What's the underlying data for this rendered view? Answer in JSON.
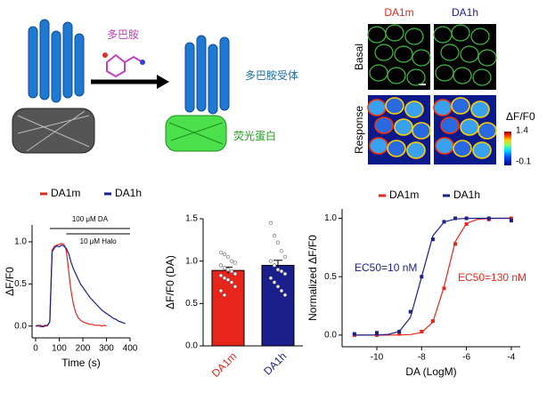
{
  "illustration": {
    "ligand": "多巴胺",
    "receptor": "多巴胺受体",
    "reporter": "荧光蛋白"
  },
  "imaging": {
    "columns": [
      "DA1m",
      "DA1h"
    ],
    "column_colors": [
      "#e8251b",
      "#1a1f8c"
    ],
    "rows": [
      "Basal",
      "Response"
    ],
    "colorbar": {
      "label": "ΔF/F0",
      "max": 1.4,
      "min": -0.1
    }
  },
  "chart_data": [
    {
      "type": "line",
      "xlabel": "Time (s)",
      "ylabel": "ΔF/F0",
      "x": [
        0,
        10,
        20,
        30,
        40,
        50,
        60,
        70,
        80,
        90,
        100,
        110,
        120,
        130,
        140,
        150,
        160,
        170,
        180,
        190,
        200,
        210,
        220,
        230,
        240,
        250,
        260,
        270,
        280,
        290,
        300,
        310,
        320,
        330,
        340,
        350,
        360,
        370,
        380
      ],
      "series": [
        {
          "name": "DA1m",
          "color": "#e8251b",
          "values": [
            0,
            0.01,
            -0.01,
            0,
            0.01,
            0,
            0.05,
            0.9,
            0.95,
            0.96,
            0.97,
            0.98,
            0.97,
            0.9,
            0.65,
            0.42,
            0.26,
            0.16,
            0.1,
            0.07,
            0.05,
            0.04,
            0.03,
            0.02,
            0.02,
            0.01,
            0.01,
            0.01,
            0,
            0.01,
            0,
            null,
            null,
            null,
            null,
            null,
            null,
            null,
            null
          ]
        },
        {
          "name": "DA1h",
          "color": "#1a1f8c",
          "values": [
            0,
            0,
            0.01,
            -0.01,
            0,
            0.01,
            0.05,
            0.88,
            0.93,
            0.95,
            0.94,
            0.96,
            0.95,
            0.92,
            0.86,
            0.76,
            0.68,
            0.62,
            0.56,
            0.5,
            0.46,
            0.42,
            0.38,
            0.34,
            0.31,
            0.28,
            0.25,
            0.22,
            0.19,
            0.17,
            0.15,
            0.13,
            0.11,
            0.09,
            0.08,
            0.06,
            0.05,
            0.04,
            0.03
          ]
        }
      ],
      "annotations": [
        {
          "text": "100 μM DA",
          "start": 60,
          "end": 400
        },
        {
          "text": "10 μM Halo",
          "start": 130,
          "end": 400
        }
      ],
      "xlim": [
        -15,
        400
      ],
      "xticks": [
        0,
        100,
        200,
        300,
        400
      ],
      "ylim": [
        -0.14,
        1.2
      ],
      "yticks": [
        {
          "value": 0,
          "label": "0.0"
        },
        {
          "value": 0.5,
          "label": "0.5"
        },
        {
          "value": 1,
          "label": "1.0"
        }
      ],
      "legend": "top"
    },
    {
      "type": "bar",
      "ylabel": "ΔF/F0 (DA)",
      "categories": [
        "DA1m",
        "DA1h"
      ],
      "colors": [
        "#e8251b",
        "#1a1f8c"
      ],
      "values": [
        0.89,
        0.95
      ],
      "errors": [
        0.04,
        0.06
      ],
      "points": [
        [
          1.1,
          1.08,
          1.05,
          1.0,
          0.98,
          0.95,
          0.92,
          0.9,
          0.88,
          0.85,
          0.83,
          0.8,
          0.78,
          0.75,
          0.7,
          0.65,
          0.6
        ],
        [
          1.45,
          1.3,
          1.22,
          1.12,
          1.05,
          1.0,
          0.95,
          0.9,
          0.88,
          0.85,
          0.8,
          0.75,
          0.7,
          0.65,
          0.6
        ]
      ],
      "ylim": [
        0,
        1.5
      ],
      "yticks": [
        {
          "value": 0,
          "label": "0.0"
        },
        {
          "value": 0.5,
          "label": "0.5"
        },
        {
          "value": 1,
          "label": "1.0"
        },
        {
          "value": 1.5,
          "label": "1.5"
        }
      ]
    },
    {
      "type": "dose_response",
      "xlabel": "DA (LogM)",
      "ylabel": "Normalized ΔF/F0",
      "series": [
        {
          "name": "DA1m",
          "color": "#e8251b",
          "x": [
            -11,
            -10,
            -9,
            -8,
            -7.5,
            -7,
            -6.5,
            -6,
            -5,
            -4
          ],
          "values": [
            0,
            0,
            0.01,
            0.03,
            0.12,
            0.4,
            0.78,
            0.95,
            0.99,
            1.0
          ],
          "fit_x": [
            -11,
            -10.5,
            -10,
            -9.5,
            -9,
            -8.5,
            -8,
            -7.5,
            -7,
            -6.5,
            -6,
            -5.5,
            -5,
            -4.5,
            -4
          ],
          "fit_values": [
            0,
            0,
            0,
            0,
            0.001,
            0.004,
            0.022,
            0.112,
            0.415,
            0.799,
            0.957,
            0.992,
            0.999,
            1,
            1
          ]
        },
        {
          "name": "DA1h",
          "color": "#1a1f8c",
          "x": [
            -11,
            -10,
            -9,
            -8.5,
            -8,
            -7.5,
            -7,
            -6.5,
            -6,
            -5,
            -4
          ],
          "values": [
            0.01,
            0.02,
            0.03,
            0.2,
            0.5,
            0.82,
            0.97,
            1.0,
            1.0,
            1.0,
            0.98
          ],
          "fit_x": [
            -11,
            -10.5,
            -10,
            -9.5,
            -9,
            -8.5,
            -8,
            -7.5,
            -7,
            -6.5,
            -6,
            -5.5,
            -5,
            -4.5,
            -4
          ],
          "fit_values": [
            0,
            0,
            0.001,
            0.006,
            0.031,
            0.151,
            0.5,
            0.849,
            0.969,
            0.994,
            0.999,
            1,
            1,
            1,
            1
          ]
        }
      ],
      "annotations": [
        {
          "text": "EC50=10 nM",
          "color": "#1a1f8c"
        },
        {
          "text": "EC50=130 nM",
          "color": "#e8251b"
        }
      ],
      "xlim": [
        -11.55,
        -3.6
      ],
      "xticks": [
        -10,
        -8,
        -6,
        -4
      ],
      "ylim": [
        -0.1,
        1.08
      ],
      "yticks": [
        {
          "value": 0,
          "label": "0.0"
        },
        {
          "value": 0.5,
          "label": "0.5"
        },
        {
          "value": 1,
          "label": "1.0"
        }
      ],
      "legend": "top"
    }
  ]
}
